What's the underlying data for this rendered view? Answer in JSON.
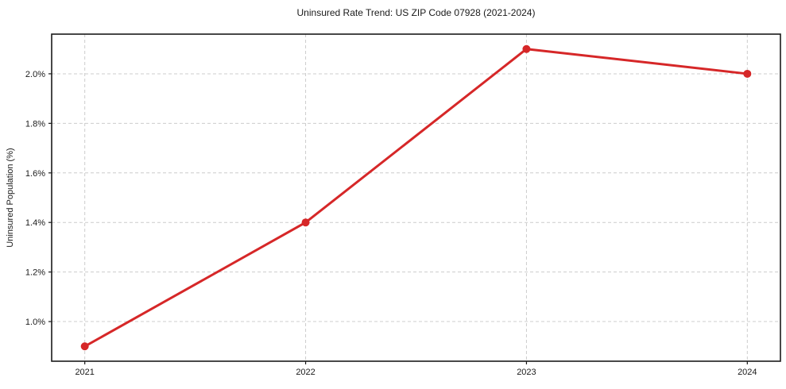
{
  "figure": {
    "title": "Uninsured Rate Trend: US ZIP Code 07928 (2021-2024)",
    "ylabel": "Uninsured Population (%)"
  },
  "chart_data": {
    "type": "line",
    "title": "Uninsured Rate Trend: US ZIP Code 07928 (2021-2024)",
    "xlabel": "",
    "ylabel": "Uninsured Population (%)",
    "x": [
      2021,
      2022,
      2023,
      2024
    ],
    "series": [
      {
        "name": "Uninsured Rate",
        "values": [
          0.9,
          1.4,
          2.1,
          2.0
        ]
      }
    ],
    "xtick_values": [
      2021,
      2022,
      2023,
      2024
    ],
    "xtick_labels": [
      "2021",
      "2022",
      "2023",
      "2024"
    ],
    "ytick_values": [
      1.0,
      1.2,
      1.4,
      1.6,
      1.8,
      2.0
    ],
    "ytick_labels": [
      "1.0%",
      "1.2%",
      "1.4%",
      "1.6%",
      "1.8%",
      "2.0%"
    ],
    "xlim": [
      2020.85,
      2024.15
    ],
    "ylim": [
      0.84,
      2.16
    ],
    "grid": true,
    "grid_style": "dashed",
    "legend": false,
    "colors": {
      "line": "#d62728",
      "marker": "#d62728",
      "grid": "#cccccc",
      "spine": "#1a1a1a",
      "background": "#ffffff",
      "text": "#1a1a1a"
    },
    "line_width": 3,
    "marker_radius": 5
  }
}
